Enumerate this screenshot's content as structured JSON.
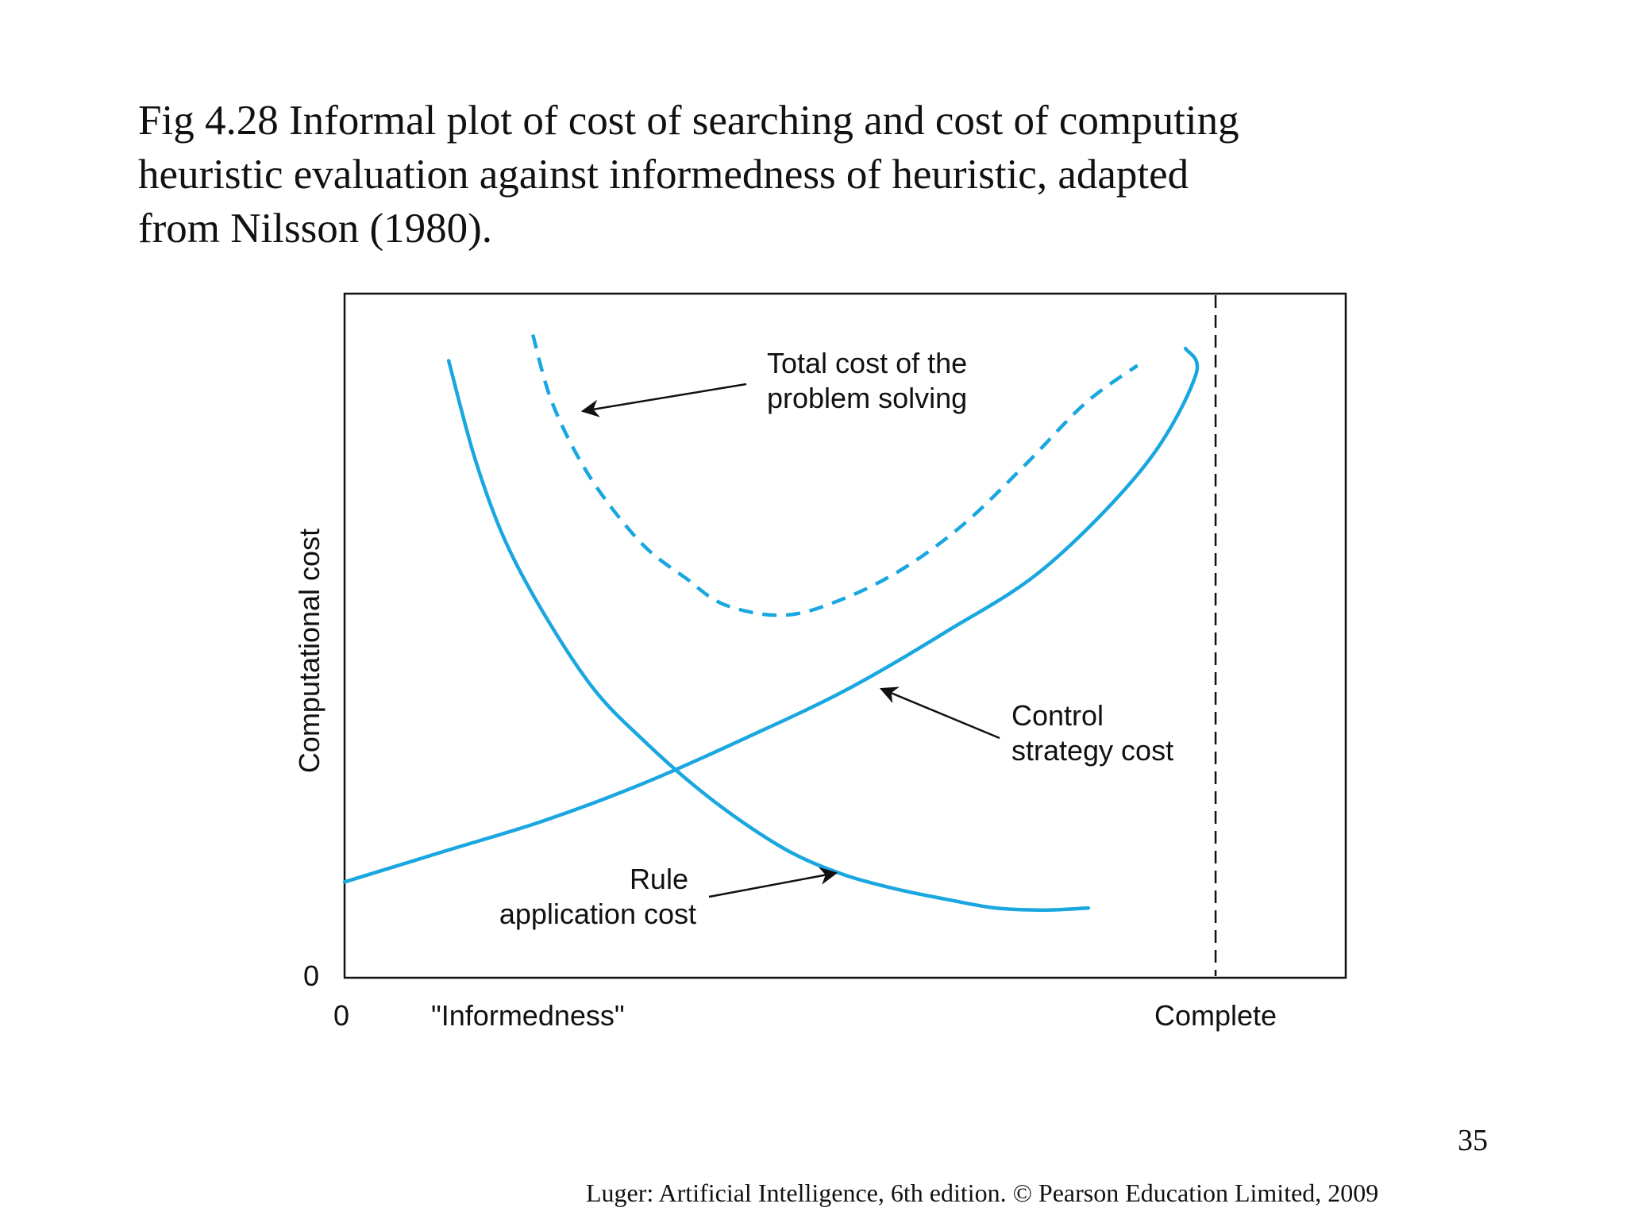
{
  "slide": {
    "caption_lines": [
      "Fig 4.28 Informal plot of cost of searching and cost of computing",
      "heuristic evaluation against informedness of heuristic, adapted",
      "from Nilsson (1980)."
    ],
    "page_number": "35",
    "credit": "Luger: Artificial Intelligence, 6th edition. © Pearson Education Limited, 2009"
  },
  "chart_data": {
    "type": "line",
    "xlabel": "\"Informedness\"",
    "ylabel": "Computational cost",
    "x_tick_labels": {
      "origin": "0",
      "end": "Complete"
    },
    "y_tick_labels": {
      "origin": "0"
    },
    "xlim": [
      0,
      100
    ],
    "ylim": [
      0,
      100
    ],
    "complete_marker_x": 87,
    "color": "#1aa7e0",
    "series": [
      {
        "key": "control",
        "style": "solid",
        "x": [
          0,
          10,
          20,
          30,
          40,
          50,
          60,
          70,
          80,
          85,
          84
        ],
        "y": [
          14,
          18.5,
          23,
          28.5,
          35,
          42,
          50.5,
          60,
          75,
          88,
          92
        ]
      },
      {
        "key": "rule",
        "style": "solid",
        "x": [
          10.4,
          13,
          16,
          20,
          25,
          30,
          35,
          40,
          45,
          50,
          55,
          60,
          65,
          70,
          74.3
        ],
        "y": [
          90.2,
          76,
          64,
          53,
          42,
          34.5,
          28,
          22.5,
          18,
          15,
          13,
          11.5,
          10.2,
          9.9,
          10.2
        ]
      },
      {
        "key": "total",
        "style": "dashed",
        "x": [
          18.8,
          20.5,
          23,
          26,
          30,
          34,
          38,
          44,
          50,
          56,
          62,
          68,
          74,
          79.2
        ],
        "y": [
          94,
          85,
          77,
          70,
          63,
          58.5,
          54.5,
          53,
          55.5,
          60,
          66.5,
          75,
          84,
          89.5
        ]
      }
    ],
    "annotations": [
      {
        "lines": [
          "Total cost of the",
          "problem solving"
        ],
        "target_series": "total"
      },
      {
        "lines": [
          "Control",
          "strategy cost"
        ],
        "target_series": "control"
      },
      {
        "lines": [
          "Rule",
          "application cost"
        ],
        "target_series": "rule"
      }
    ]
  }
}
